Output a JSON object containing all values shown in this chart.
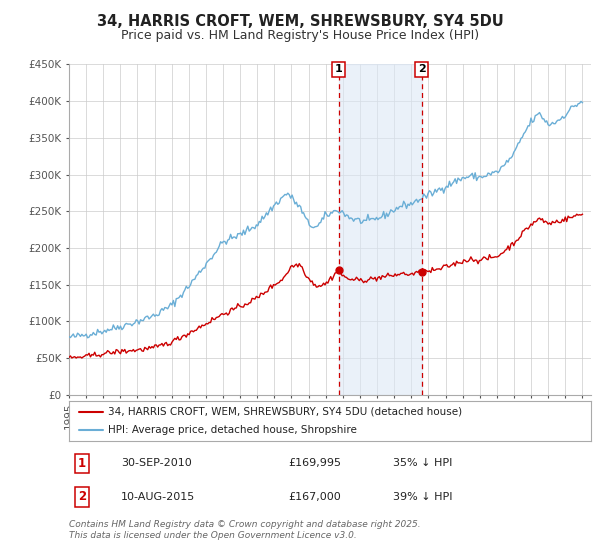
{
  "title": "34, HARRIS CROFT, WEM, SHREWSBURY, SY4 5DU",
  "subtitle": "Price paid vs. HM Land Registry's House Price Index (HPI)",
  "ylim": [
    0,
    450000
  ],
  "yticks": [
    0,
    50000,
    100000,
    150000,
    200000,
    250000,
    300000,
    350000,
    400000,
    450000
  ],
  "ytick_labels": [
    "£0",
    "£50K",
    "£100K",
    "£150K",
    "£200K",
    "£250K",
    "£300K",
    "£350K",
    "£400K",
    "£450K"
  ],
  "xlim_start": 1995.0,
  "xlim_end": 2025.5,
  "hpi_color": "#6aaed6",
  "price_color": "#cc0000",
  "marker_color": "#cc0000",
  "bg_color": "#ffffff",
  "grid_color": "#cccccc",
  "sale1_x": 2010.75,
  "sale1_y": 169995,
  "sale1_label": "1",
  "sale1_date": "30-SEP-2010",
  "sale1_price": "£169,995",
  "sale1_hpi": "35% ↓ HPI",
  "sale2_x": 2015.6,
  "sale2_y": 167000,
  "sale2_label": "2",
  "sale2_date": "10-AUG-2015",
  "sale2_price": "£167,000",
  "sale2_hpi": "39% ↓ HPI",
  "shade_color": "#dce8f5",
  "legend1_text": "34, HARRIS CROFT, WEM, SHREWSBURY, SY4 5DU (detached house)",
  "legend2_text": "HPI: Average price, detached house, Shropshire",
  "footer": "Contains HM Land Registry data © Crown copyright and database right 2025.\nThis data is licensed under the Open Government Licence v3.0.",
  "title_fontsize": 10.5,
  "subtitle_fontsize": 9,
  "tick_fontsize": 7.5,
  "legend_fontsize": 7.5,
  "table_fontsize": 8,
  "footer_fontsize": 6.5,
  "hpi_waypoints_x": [
    1995.0,
    1996.0,
    1997.0,
    1998.0,
    1999.0,
    2000.0,
    2001.0,
    2002.0,
    2003.0,
    2004.0,
    2005.0,
    2006.0,
    2007.0,
    2007.75,
    2008.5,
    2009.0,
    2009.5,
    2010.0,
    2010.75,
    2011.0,
    2011.5,
    2012.0,
    2012.5,
    2013.0,
    2013.5,
    2014.0,
    2014.5,
    2015.0,
    2015.6,
    2016.0,
    2016.5,
    2017.0,
    2017.5,
    2018.0,
    2018.5,
    2019.0,
    2019.5,
    2020.0,
    2020.5,
    2021.0,
    2021.5,
    2022.0,
    2022.5,
    2023.0,
    2023.5,
    2024.0,
    2024.5,
    2025.0
  ],
  "hpi_waypoints_y": [
    78000,
    82000,
    87000,
    93000,
    100000,
    108000,
    122000,
    148000,
    178000,
    208000,
    218000,
    232000,
    258000,
    275000,
    255000,
    232000,
    228000,
    244000,
    252000,
    248000,
    240000,
    237000,
    236000,
    240000,
    245000,
    252000,
    258000,
    260000,
    268000,
    272000,
    278000,
    284000,
    290000,
    295000,
    298000,
    296000,
    300000,
    303000,
    314000,
    328000,
    352000,
    372000,
    383000,
    368000,
    372000,
    382000,
    393000,
    400000
  ],
  "price_waypoints_x": [
    1995.0,
    1996.0,
    1997.0,
    1998.0,
    1999.0,
    2000.0,
    2001.0,
    2002.0,
    2003.0,
    2004.0,
    2005.0,
    2006.0,
    2007.0,
    2007.5,
    2008.0,
    2008.5,
    2009.0,
    2009.5,
    2010.0,
    2010.75,
    2011.0,
    2011.5,
    2012.0,
    2012.5,
    2013.0,
    2013.5,
    2014.0,
    2014.5,
    2015.0,
    2015.6,
    2016.0,
    2016.5,
    2017.0,
    2017.5,
    2018.0,
    2018.5,
    2019.0,
    2019.5,
    2020.0,
    2020.5,
    2021.0,
    2021.5,
    2022.0,
    2022.5,
    2023.0,
    2023.5,
    2024.0,
    2024.5,
    2025.0
  ],
  "price_waypoints_y": [
    50000,
    52000,
    56000,
    59000,
    61000,
    64000,
    72000,
    84000,
    97000,
    110000,
    120000,
    132000,
    150000,
    158000,
    175000,
    178000,
    158000,
    148000,
    151000,
    169995,
    161000,
    157000,
    156000,
    157000,
    159000,
    161000,
    163000,
    165000,
    164000,
    167000,
    168000,
    170000,
    174000,
    178000,
    182000,
    185000,
    183000,
    186000,
    188000,
    197000,
    207000,
    220000,
    232000,
    240000,
    233000,
    236000,
    239000,
    243000,
    246000
  ]
}
